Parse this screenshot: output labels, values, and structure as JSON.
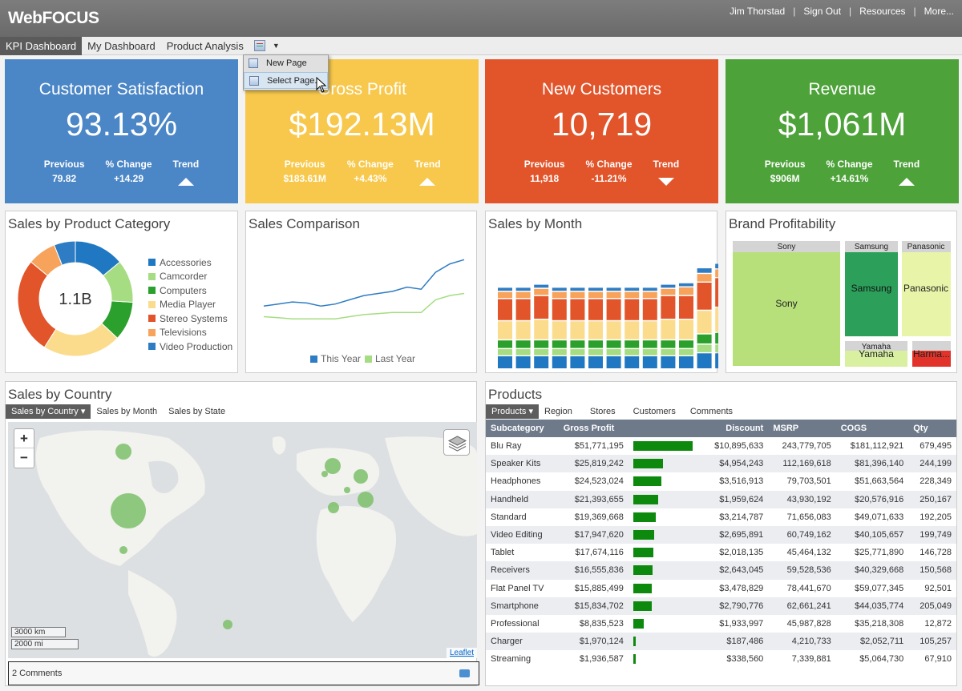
{
  "app": {
    "logo": "WebFOCUS",
    "user": "Jim Thorstad",
    "links": [
      "Sign Out",
      "Resources",
      "More..."
    ]
  },
  "tabs": [
    "KPI Dashboard",
    "My Dashboard",
    "Product Analysis"
  ],
  "menu": {
    "new_page": "New Page",
    "select_page": "Select Page..."
  },
  "kpis": [
    {
      "title": "Customer Satisfaction",
      "value": "93.13%",
      "prev_label": "Previous",
      "prev": "79.82",
      "chg_label": "% Change",
      "chg": "+14.29",
      "trend_label": "Trend",
      "trend": "up",
      "color": "#4b86c6"
    },
    {
      "title": "Gross Profit",
      "value": "$192.13M",
      "prev_label": "Previous",
      "prev": "$183.61M",
      "chg_label": "% Change",
      "chg": "+4.43%",
      "trend_label": "Trend",
      "trend": "up",
      "color": "#f7c84b"
    },
    {
      "title": "New Customers",
      "value": "10,719",
      "prev_label": "Previous",
      "prev": "11,918",
      "chg_label": "% Change",
      "chg": "-11.21%",
      "trend_label": "Trend",
      "trend": "down",
      "color": "#e2542a"
    },
    {
      "title": "Revenue",
      "value": "$1,061M",
      "prev_label": "Previous",
      "prev": "$906M",
      "chg_label": "% Change",
      "chg": "+14.61%",
      "trend_label": "Trend",
      "trend": "up",
      "color": "#4ea23a"
    }
  ],
  "category_panel": {
    "title": "Sales by Product Category",
    "center": "1.1B",
    "legend": [
      {
        "name": "Accessories",
        "color": "#1f78c1",
        "share": 14
      },
      {
        "name": "Camcorder",
        "color": "#a6dc82",
        "share": 12
      },
      {
        "name": "Computers",
        "color": "#2ca02c",
        "share": 11
      },
      {
        "name": "Media Player",
        "color": "#fbdc8d",
        "share": 22
      },
      {
        "name": "Stereo Systems",
        "color": "#e2542a",
        "share": 27
      },
      {
        "name": "Televisions",
        "color": "#f7a35c",
        "share": 8
      },
      {
        "name": "Video Production",
        "color": "#2e7dc4",
        "share": 6
      }
    ]
  },
  "comparison": {
    "title": "Sales Comparison",
    "legend": [
      "This Year",
      "Last Year"
    ],
    "this_year": [
      22,
      23,
      24,
      23.5,
      22,
      23,
      25,
      27,
      28,
      29,
      31,
      30,
      38,
      42,
      44
    ],
    "last_year": [
      17,
      16.5,
      16,
      16,
      16,
      16,
      17,
      18,
      18.5,
      19,
      19,
      19,
      25,
      27,
      28
    ]
  },
  "month_panel": {
    "title": "Sales by Month",
    "colors": [
      "#1f78c1",
      "#a6dc82",
      "#2ca02c",
      "#fbdc8d",
      "#e2542a",
      "#f7a35c",
      "#2e7dc4"
    ],
    "stacks": [
      [
        8,
        4,
        5,
        12,
        14,
        4,
        2
      ],
      [
        8,
        4,
        5,
        12,
        14,
        4,
        2
      ],
      [
        8,
        4,
        5,
        13,
        15,
        4,
        2
      ],
      [
        8,
        4,
        5,
        12,
        14,
        4,
        2
      ],
      [
        8,
        4,
        5,
        12,
        14,
        4,
        2
      ],
      [
        8,
        4,
        5,
        12,
        14,
        4,
        2
      ],
      [
        8,
        4,
        5,
        12,
        14,
        4,
        2
      ],
      [
        8,
        4,
        5,
        12,
        14,
        4,
        2
      ],
      [
        8,
        4,
        5,
        12,
        14,
        4,
        2
      ],
      [
        8,
        4,
        5,
        13,
        15,
        4,
        2
      ],
      [
        8,
        4,
        5,
        13,
        15,
        5,
        2
      ],
      [
        10,
        5,
        6,
        15,
        18,
        5,
        3
      ],
      [
        10,
        5,
        7,
        16,
        19,
        5,
        3
      ],
      [
        10,
        6,
        7,
        17,
        20,
        5,
        3
      ]
    ]
  },
  "brand_panel": {
    "title": "Brand Profitability",
    "brands": [
      {
        "label": "Sony",
        "header": "Sony",
        "color": "#b7e07a"
      },
      {
        "label": "Samsung",
        "header": "Samsung",
        "color": "#2ca05a"
      },
      {
        "label": "Panasonic",
        "header": "Panasonic",
        "color": "#e8f5a9"
      },
      {
        "label": "Yamaha",
        "header": "Yamaha",
        "color": "#d8f0a0"
      },
      {
        "label": "Harma...",
        "header": "",
        "color": "#e2332a"
      }
    ]
  },
  "country_panel": {
    "title": "Sales by Country",
    "tabs": [
      "Sales by Country",
      "Sales by Month",
      "Sales by State"
    ],
    "zoom_in": "+",
    "zoom_out": "−",
    "scale_km": "3000 km",
    "scale_mi": "2000 mi",
    "attribution": "Leaflet",
    "comments": "2 Comments"
  },
  "products_panel": {
    "title": "Products",
    "tabs": [
      "Products",
      "Region",
      "Stores",
      "Customers",
      "Comments"
    ],
    "columns": [
      "Subcategory",
      "Gross Profit",
      "",
      "Discount",
      "MSRP",
      "COGS",
      "Qty"
    ],
    "rows": [
      {
        "name": "Blu Ray",
        "gross": "$51,771,195",
        "bar": 51771195,
        "discount": "$10,895,633",
        "msrp": "243,779,705",
        "cogs": "$181,112,921",
        "qty": "679,495"
      },
      {
        "name": "Speaker Kits",
        "gross": "$25,819,242",
        "bar": 25819242,
        "discount": "$4,954,243",
        "msrp": "112,169,618",
        "cogs": "$81,396,140",
        "qty": "244,199"
      },
      {
        "name": "Headphones",
        "gross": "$24,523,024",
        "bar": 24523024,
        "discount": "$3,516,913",
        "msrp": "79,703,501",
        "cogs": "$51,663,564",
        "qty": "228,349"
      },
      {
        "name": "Handheld",
        "gross": "$21,393,655",
        "bar": 21393655,
        "discount": "$1,959,624",
        "msrp": "43,930,192",
        "cogs": "$20,576,916",
        "qty": "250,167"
      },
      {
        "name": "Standard",
        "gross": "$19,369,668",
        "bar": 19369668,
        "discount": "$3,214,787",
        "msrp": "71,656,083",
        "cogs": "$49,071,633",
        "qty": "192,205"
      },
      {
        "name": "Video Editing",
        "gross": "$17,947,620",
        "bar": 17947620,
        "discount": "$2,695,891",
        "msrp": "60,749,162",
        "cogs": "$40,105,657",
        "qty": "199,749"
      },
      {
        "name": "Tablet",
        "gross": "$17,674,116",
        "bar": 17674116,
        "discount": "$2,018,135",
        "msrp": "45,464,132",
        "cogs": "$25,771,890",
        "qty": "146,728"
      },
      {
        "name": "Receivers",
        "gross": "$16,555,836",
        "bar": 16555836,
        "discount": "$2,643,045",
        "msrp": "59,528,536",
        "cogs": "$40,329,668",
        "qty": "150,568"
      },
      {
        "name": "Flat Panel TV",
        "gross": "$15,885,499",
        "bar": 15885499,
        "discount": "$3,478,829",
        "msrp": "78,441,670",
        "cogs": "$59,077,345",
        "qty": "92,501"
      },
      {
        "name": "Smartphone",
        "gross": "$15,834,702",
        "bar": 15834702,
        "discount": "$2,790,776",
        "msrp": "62,661,241",
        "cogs": "$44,035,774",
        "qty": "205,049"
      },
      {
        "name": "Professional",
        "gross": "$8,835,523",
        "bar": 8835523,
        "discount": "$1,933,997",
        "msrp": "45,987,828",
        "cogs": "$35,218,308",
        "qty": "12,872"
      },
      {
        "name": "Charger",
        "gross": "$1,970,124",
        "bar": 1970124,
        "discount": "$187,486",
        "msrp": "4,210,733",
        "cogs": "$2,052,711",
        "qty": "105,257"
      },
      {
        "name": "Streaming",
        "gross": "$1,936,587",
        "bar": 1936587,
        "discount": "$338,560",
        "msrp": "7,339,881",
        "cogs": "$5,064,730",
        "qty": "67,910"
      }
    ]
  }
}
